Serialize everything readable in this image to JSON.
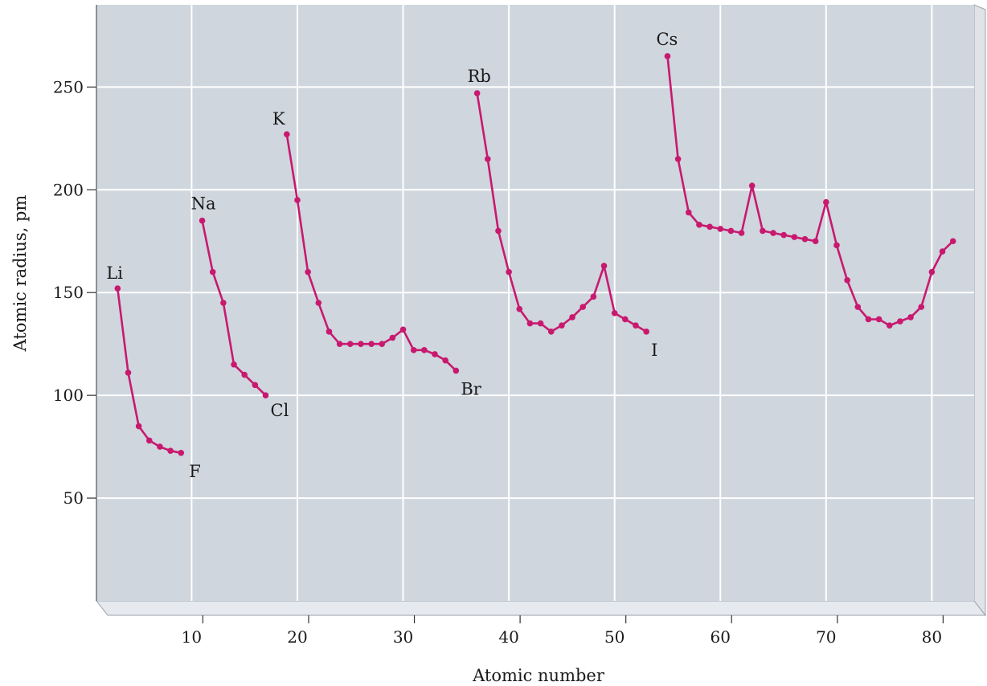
{
  "chart_data": {
    "type": "line",
    "title": "",
    "xlabel": "Atomic number",
    "ylabel": "Atomic radius, pm",
    "xlim": [
      1,
      84
    ],
    "ylim": [
      0,
      290
    ],
    "xticks": [
      10,
      20,
      30,
      40,
      50,
      60,
      70,
      80
    ],
    "yticks": [
      50,
      100,
      150,
      200,
      250
    ],
    "grid": true,
    "colors": {
      "series": "#c8196f",
      "plot_bg": "#cfd6de",
      "grid": "#ffffff"
    },
    "series": [
      {
        "x": [
          3,
          4,
          5,
          6,
          7,
          8,
          9
        ],
        "y": [
          152,
          111,
          85,
          78,
          75,
          73,
          72
        ]
      },
      {
        "x": [
          11,
          12,
          13,
          14,
          15,
          16,
          17
        ],
        "y": [
          185,
          160,
          145,
          115,
          110,
          105,
          100
        ]
      },
      {
        "x": [
          19,
          20,
          21,
          22,
          23,
          24,
          25,
          26,
          27,
          28,
          29,
          30,
          31,
          32,
          33,
          34,
          35
        ],
        "y": [
          227,
          195,
          160,
          145,
          131,
          125,
          125,
          125,
          125,
          125,
          128,
          132,
          122,
          122,
          120,
          117,
          112
        ]
      },
      {
        "x": [
          37,
          38,
          39,
          40,
          41,
          42,
          43,
          44,
          45,
          46,
          47,
          48,
          49,
          50,
          51,
          52,
          53
        ],
        "y": [
          247,
          215,
          180,
          160,
          142,
          135,
          135,
          131,
          134,
          138,
          143,
          148,
          163,
          140,
          137,
          134,
          131
        ]
      },
      {
        "x": [
          55,
          56,
          57,
          58,
          59,
          60,
          61,
          62,
          63,
          64,
          65,
          66,
          67,
          68,
          69,
          70,
          71,
          72,
          73,
          74,
          75,
          76,
          77,
          78,
          79,
          80,
          81,
          82
        ],
        "y": [
          265,
          215,
          189,
          183,
          182,
          181,
          180,
          179,
          202,
          180,
          179,
          178,
          177,
          176,
          175,
          194,
          173,
          156,
          143,
          137,
          137,
          134,
          136,
          138,
          143,
          160,
          170,
          175
        ]
      }
    ],
    "annotations": [
      {
        "text": "Li",
        "x": 3,
        "y": 152
      },
      {
        "text": "F",
        "x": 9,
        "y": 72
      },
      {
        "text": "Na",
        "x": 11,
        "y": 185
      },
      {
        "text": "Cl",
        "x": 17,
        "y": 100
      },
      {
        "text": "K",
        "x": 19,
        "y": 227
      },
      {
        "text": "Br",
        "x": 35,
        "y": 112
      },
      {
        "text": "Rb",
        "x": 37,
        "y": 247
      },
      {
        "text": "I",
        "x": 53,
        "y": 131
      },
      {
        "text": "Cs",
        "x": 55,
        "y": 265
      }
    ]
  }
}
